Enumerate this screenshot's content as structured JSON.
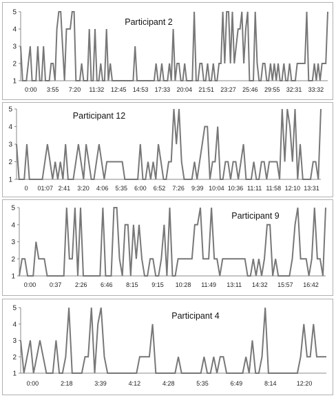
{
  "chart_data": [
    {
      "type": "line",
      "title": "Participant 2",
      "ylim": [
        1,
        5
      ],
      "yticks": [
        1,
        2,
        3,
        4,
        5
      ],
      "grid": false,
      "xticks": [
        "0:00",
        "3:55",
        "7:20",
        "11:32",
        "12:45",
        "14:53",
        "17:33",
        "20:04",
        "21:51",
        "23:27",
        "25:46",
        "29:55",
        "32:31",
        "33:32"
      ],
      "values": [
        3,
        1,
        1,
        1,
        2,
        3,
        1,
        1,
        1,
        3,
        1,
        1,
        3,
        1,
        1,
        1,
        2,
        2,
        1,
        4,
        5,
        5,
        3,
        1,
        4,
        4,
        4,
        5,
        5,
        1,
        1,
        1,
        2,
        1,
        1,
        1,
        4,
        1,
        1,
        4,
        1,
        1,
        2,
        1,
        1,
        4,
        1,
        2,
        1,
        1,
        1,
        1,
        1,
        1,
        1,
        1,
        1,
        1,
        1,
        1,
        3,
        1,
        1,
        1,
        1,
        1,
        1,
        1,
        1,
        1,
        1,
        2,
        1,
        1,
        2,
        1,
        1,
        1,
        2,
        1,
        4,
        1,
        2,
        2,
        1,
        1,
        2,
        1,
        1,
        1,
        1,
        5,
        1,
        1,
        2,
        2,
        1,
        1,
        2,
        1,
        1,
        2,
        1,
        1,
        2,
        2,
        5,
        2,
        5,
        5,
        2,
        5,
        2,
        3,
        4,
        4,
        5,
        2,
        4,
        5,
        1,
        1,
        1,
        5,
        2,
        1,
        1,
        2,
        2,
        1,
        1,
        2,
        1,
        2,
        1,
        2,
        1,
        1,
        2,
        1,
        1,
        2,
        1,
        1,
        1,
        2,
        2,
        2,
        2,
        2,
        5,
        1,
        1,
        1,
        2,
        1,
        2,
        1,
        2,
        2,
        2,
        5
      ]
    },
    {
      "type": "line",
      "title": "Participant 12",
      "ylim": [
        1,
        5
      ],
      "yticks": [
        1,
        2,
        3,
        4,
        5
      ],
      "grid": false,
      "xticks": [
        "0",
        "01:07",
        "2:41",
        "3:20",
        "4:06",
        "5:35",
        "6:00",
        "6:52",
        "7:26",
        "9:39",
        "10:04",
        "10:36",
        "11:11",
        "11:58",
        "12:10",
        "13:31"
      ],
      "values": [
        3,
        1,
        1,
        1,
        3,
        1,
        1,
        1,
        1,
        1,
        1,
        2,
        3,
        2,
        1,
        2,
        1,
        2,
        1,
        3,
        1,
        1,
        1,
        2,
        3,
        2,
        1,
        3,
        2,
        1,
        1,
        2,
        3,
        2,
        1,
        2,
        2,
        2,
        2,
        2,
        2,
        2,
        1,
        1,
        1,
        1,
        1,
        1,
        3,
        1,
        1,
        2,
        1,
        2,
        1,
        3,
        2,
        1,
        1,
        2,
        2,
        5,
        3,
        5,
        2,
        1,
        1,
        1,
        1,
        2,
        1,
        2,
        3,
        4,
        4,
        1,
        2,
        2,
        4,
        1,
        1,
        2,
        2,
        1,
        2,
        2,
        1,
        2,
        3,
        1,
        1,
        1,
        2,
        1,
        1,
        2,
        2,
        1,
        2,
        2,
        2,
        2,
        1,
        5,
        2,
        5,
        4,
        2,
        5,
        1,
        3,
        1,
        1,
        1,
        1,
        2,
        2,
        1,
        5
      ]
    },
    {
      "type": "line",
      "title": "Participant 9",
      "ylim": [
        1,
        5
      ],
      "yticks": [
        1,
        2,
        3,
        4,
        5
      ],
      "grid": false,
      "xticks": [
        "0:00",
        "0:37",
        "2:26",
        "6:46",
        "8:15",
        "9:15",
        "10:28",
        "11:49",
        "13:11",
        "14:32",
        "15:57",
        "16:42"
      ],
      "values": [
        1,
        2,
        2,
        1,
        1,
        1,
        3,
        2,
        2,
        2,
        1,
        1,
        1,
        1,
        1,
        1,
        1,
        5,
        2,
        2,
        5,
        1,
        5,
        1,
        1,
        1,
        1,
        1,
        1,
        1,
        5,
        1,
        1,
        1,
        5,
        5,
        2,
        1,
        4,
        4,
        1,
        4,
        2,
        4,
        2,
        1,
        1,
        2,
        2,
        1,
        1,
        2,
        4,
        1,
        5,
        1,
        1,
        2,
        2,
        2,
        2,
        2,
        2,
        4,
        4,
        5,
        2,
        2,
        2,
        5,
        2,
        2,
        1,
        2,
        2,
        2,
        2,
        2,
        2,
        2,
        2,
        2,
        1,
        1,
        2,
        1,
        2,
        1,
        2,
        4,
        4,
        1,
        2,
        1,
        1,
        1,
        1,
        1,
        2,
        4,
        5,
        2,
        2,
        2,
        1,
        2,
        5,
        2,
        2,
        1,
        5
      ]
    },
    {
      "type": "line",
      "title": "Participant 4",
      "ylim": [
        1,
        5
      ],
      "yticks": [
        1,
        2,
        3,
        4,
        5
      ],
      "grid": false,
      "xticks": [
        "0:00",
        "2:18",
        "3:39",
        "4:12",
        "4:28",
        "5:35",
        "6:49",
        "8:14",
        "12:20"
      ],
      "values": [
        3,
        1,
        2,
        3,
        1,
        2,
        3,
        2,
        1,
        1,
        1,
        3,
        1,
        1,
        2,
        5,
        1,
        1,
        1,
        1,
        2,
        2,
        5,
        1,
        4,
        5,
        2,
        1,
        1,
        1,
        1,
        1,
        1,
        1,
        1,
        1,
        1,
        2,
        2,
        2,
        2,
        4,
        1,
        1,
        1,
        1,
        1,
        1,
        1,
        2,
        1,
        1,
        1,
        1,
        1,
        1,
        1,
        2,
        1,
        1,
        2,
        1,
        2,
        2,
        1,
        1,
        1,
        1,
        1,
        1,
        2,
        1,
        3,
        1,
        1,
        2,
        5,
        1,
        1,
        1,
        1,
        1,
        1,
        1,
        1,
        1,
        1,
        2,
        4,
        2,
        2,
        4,
        2,
        2,
        2,
        2
      ]
    }
  ]
}
